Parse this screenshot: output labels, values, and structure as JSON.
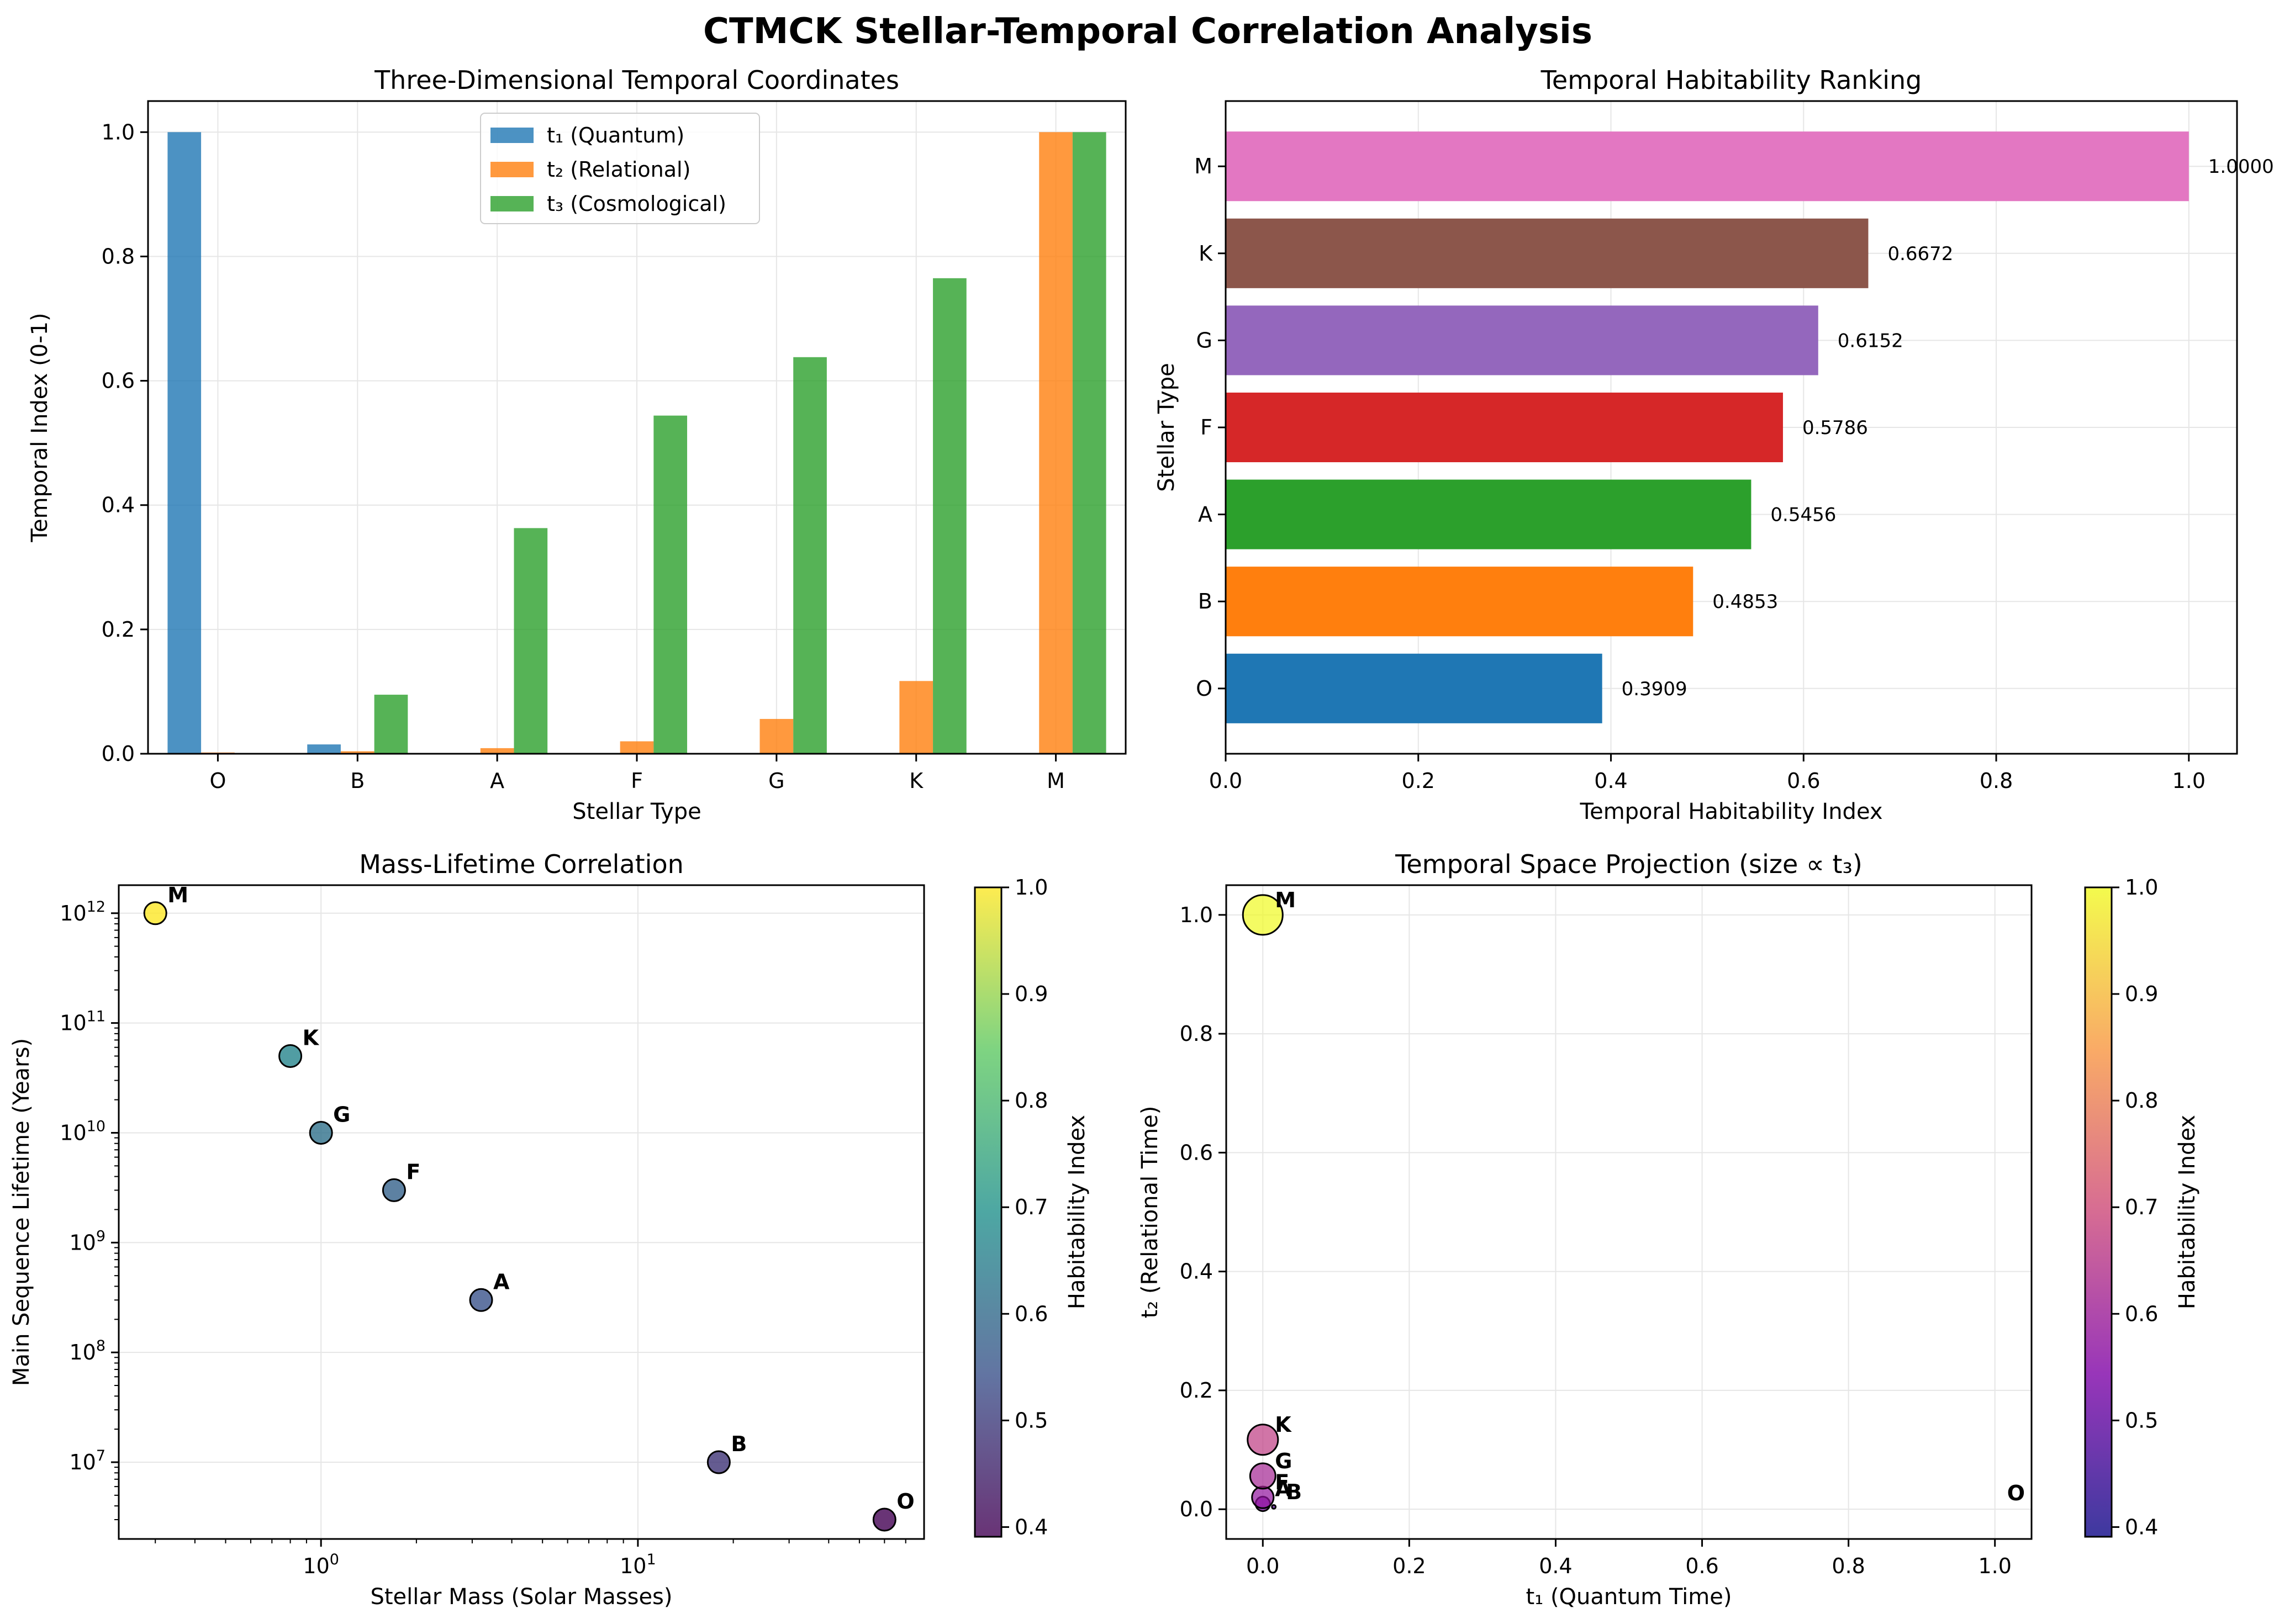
{
  "suptitle": "CTMCK Stellar-Temporal Correlation Analysis",
  "colors": {
    "t1": "#1f77b4",
    "t2": "#ff7f0e",
    "t3": "#2ca02c",
    "grid": "#e6e6e6",
    "rank": {
      "O": "#1f77b4",
      "B": "#ff7f0e",
      "A": "#2ca02c",
      "F": "#d62728",
      "G": "#9467bd",
      "K": "#8c564b",
      "M": "#e377c2"
    }
  },
  "chart_data": [
    {
      "id": "temporal-coordinates",
      "type": "bar",
      "title": "Three-Dimensional Temporal Coordinates",
      "xlabel": "Stellar Type",
      "ylabel": "Temporal Index (0-1)",
      "categories": [
        "O",
        "B",
        "A",
        "F",
        "G",
        "K",
        "M"
      ],
      "ylim": [
        0,
        1.05
      ],
      "yticks": [
        "0.0",
        "0.2",
        "0.4",
        "0.6",
        "0.8",
        "1.0"
      ],
      "legend": "top-center",
      "grid": true,
      "series": [
        {
          "name": "t₁ (Quantum)",
          "values": [
            1.0,
            0.015,
            0.0,
            0.0,
            0.0,
            0.0,
            0.0
          ]
        },
        {
          "name": "t₂ (Relational)",
          "values": [
            0.002,
            0.004,
            0.009,
            0.02,
            0.056,
            0.117,
            1.0
          ]
        },
        {
          "name": "t₃ (Cosmological)",
          "values": [
            0.0,
            0.095,
            0.363,
            0.544,
            0.638,
            0.765,
            1.0
          ]
        }
      ]
    },
    {
      "id": "habitability-ranking",
      "type": "bar",
      "orientation": "horizontal",
      "title": "Temporal Habitability Ranking",
      "xlabel": "Temporal Habitability Index",
      "ylabel": "Stellar Type",
      "categories": [
        "O",
        "B",
        "A",
        "F",
        "G",
        "K",
        "M"
      ],
      "values": [
        0.3909,
        0.4853,
        0.5456,
        0.5786,
        0.6152,
        0.6672,
        1.0
      ],
      "value_labels": [
        "0.3909",
        "0.4853",
        "0.5456",
        "0.5786",
        "0.6152",
        "0.6672",
        "1.0000"
      ],
      "xlim": [
        0,
        1.05
      ],
      "xticks": [
        "0.0",
        "0.2",
        "0.4",
        "0.6",
        "0.8",
        "1.0"
      ],
      "grid": true
    },
    {
      "id": "mass-lifetime",
      "type": "scatter",
      "title": "Mass-Lifetime Correlation",
      "xlabel": "Stellar Mass (Solar Masses)",
      "ylabel": "Main Sequence Lifetime (Years)",
      "xscale": "log",
      "yscale": "log",
      "xlim": [
        0.23,
        80
      ],
      "ylim": [
        2000000.0,
        1800000000000.0
      ],
      "xtick_exponents": [
        "0",
        "1"
      ],
      "ytick_exponents": [
        "7",
        "8",
        "9",
        "10",
        "11",
        "12"
      ],
      "points": [
        {
          "label": "O",
          "x": 60,
          "y": 3000000.0,
          "c": 0.3909
        },
        {
          "label": "B",
          "x": 18,
          "y": 10000000.0,
          "c": 0.4853
        },
        {
          "label": "A",
          "x": 3.2,
          "y": 300000000.0,
          "c": 0.5456
        },
        {
          "label": "F",
          "x": 1.7,
          "y": 3000000000.0,
          "c": 0.5786
        },
        {
          "label": "G",
          "x": 1.0,
          "y": 10000000000.0,
          "c": 0.6152
        },
        {
          "label": "K",
          "x": 0.8,
          "y": 50000000000.0,
          "c": 0.6672
        },
        {
          "label": "M",
          "x": 0.3,
          "y": 1000000000000.0,
          "c": 1.0
        }
      ],
      "colormap": "viridis",
      "colorbar": {
        "label": "Habitability Index",
        "range": [
          0.3909,
          1.0
        ],
        "ticks": [
          "0.4",
          "0.5",
          "0.6",
          "0.7",
          "0.8",
          "0.9",
          "1.0"
        ]
      },
      "grid": true
    },
    {
      "id": "temporal-space",
      "type": "scatter",
      "title": "Temporal Space Projection (size ∝ t₃)",
      "xlabel": "t₁ (Quantum Time)",
      "ylabel": "t₂ (Relational Time)",
      "xlim": [
        -0.05,
        1.05
      ],
      "ylim": [
        -0.05,
        1.05
      ],
      "xticks": [
        "0.0",
        "0.2",
        "0.4",
        "0.6",
        "0.8",
        "1.0"
      ],
      "yticks": [
        "0.0",
        "0.2",
        "0.4",
        "0.6",
        "0.8",
        "1.0"
      ],
      "points": [
        {
          "label": "O",
          "x": 1.0,
          "y": 0.002,
          "size": 0.0,
          "c": 0.3909
        },
        {
          "label": "B",
          "x": 0.015,
          "y": 0.004,
          "size": 0.095,
          "c": 0.4853
        },
        {
          "label": "A",
          "x": 0.0,
          "y": 0.009,
          "size": 0.363,
          "c": 0.5456
        },
        {
          "label": "F",
          "x": 0.0,
          "y": 0.02,
          "size": 0.544,
          "c": 0.5786
        },
        {
          "label": "G",
          "x": 0.0,
          "y": 0.056,
          "size": 0.638,
          "c": 0.6152
        },
        {
          "label": "K",
          "x": 0.0,
          "y": 0.117,
          "size": 0.765,
          "c": 0.6672
        },
        {
          "label": "M",
          "x": 0.0,
          "y": 1.0,
          "size": 1.0,
          "c": 1.0
        }
      ],
      "colormap": "plasma",
      "colorbar": {
        "label": "Habitability Index",
        "range": [
          0.3909,
          1.0
        ],
        "ticks": [
          "0.4",
          "0.5",
          "0.6",
          "0.7",
          "0.8",
          "0.9",
          "1.0"
        ]
      },
      "grid": true
    }
  ]
}
